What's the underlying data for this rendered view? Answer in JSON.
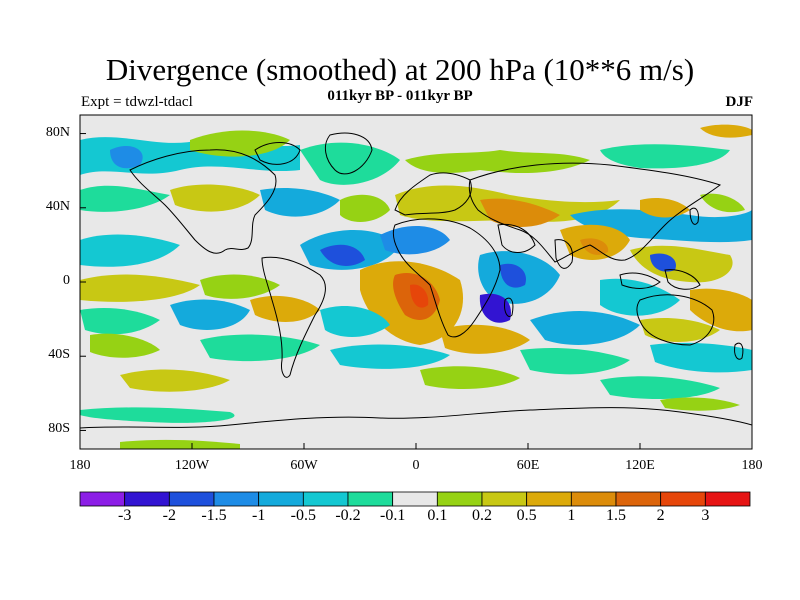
{
  "header": {
    "title": "Divergence (smoothed) at 200 hPa (10**6 m/s)",
    "subtitle": "011kyr BP - 011kyr BP",
    "experiment": "Expt = tdwzl-tdacl",
    "season": "DJF"
  },
  "map": {
    "lat_ticks": [
      "80N",
      "40N",
      "0",
      "40S",
      "80S"
    ],
    "lat_values": [
      80,
      40,
      0,
      -40,
      -80
    ],
    "lon_ticks": [
      "180",
      "120W",
      "60W",
      "0",
      "60E",
      "120E",
      "180"
    ],
    "lon_values": [
      -180,
      -120,
      -60,
      0,
      60,
      120,
      180
    ],
    "background_color": "#e8e8e8"
  },
  "colorbar": {
    "colors": [
      "#8c1ee6",
      "#3214d2",
      "#1e50dc",
      "#1e8ce6",
      "#14aadc",
      "#14c8d2",
      "#1edc9b",
      "#e8e8e8",
      "#96d214",
      "#c8c814",
      "#dcaa0a",
      "#dc8c0a",
      "#dc640a",
      "#e6460a",
      "#e61414"
    ],
    "labels": [
      "-3",
      "-2",
      "-1.5",
      "-1",
      "-0.5",
      "-0.2",
      "-0.1",
      "0.1",
      "0.2",
      "0.5",
      "1",
      "1.5",
      "2",
      "3"
    ]
  }
}
